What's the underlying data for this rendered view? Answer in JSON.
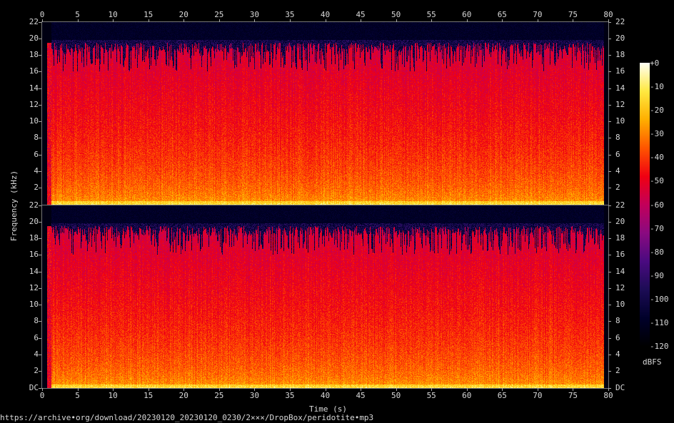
{
  "chart_data": {
    "type": "heatmap",
    "subtype": "spectrogram",
    "channels": 2,
    "xlabel": "Time (s)",
    "ylabel": "Frequency (kHz)",
    "xlim": [
      0,
      80
    ],
    "ylim": [
      0,
      22
    ],
    "x_ticks": [
      "0",
      "5",
      "10",
      "15",
      "20",
      "25",
      "30",
      "35",
      "40",
      "45",
      "50",
      "55",
      "60",
      "65",
      "70",
      "75",
      "80"
    ],
    "y_ticks": [
      "DC",
      "2",
      "4",
      "6",
      "8",
      "10",
      "12",
      "14",
      "16",
      "18",
      "20",
      "22"
    ],
    "y_ticks_top_panel_bottom_label": "22",
    "colorbar": {
      "label": "dBFS",
      "range": [
        -120,
        0
      ],
      "ticks": [
        "+0",
        "-10",
        "-20",
        "-30",
        "-40",
        "-50",
        "-60",
        "-70",
        "-80",
        "-90",
        "-100",
        "-110",
        "-120"
      ],
      "colors": [
        "#000000",
        "#00002a",
        "#1c0c55",
        "#4a0a80",
        "#8a0a80",
        "#c2005a",
        "#f00012",
        "#ff5500",
        "#ffae00",
        "#ffe840",
        "#fffff2"
      ]
    },
    "content_summary": {
      "signal_start_s": 1.3,
      "signal_end_s": 79.3,
      "lowpass_cutoff_khz": [
        16,
        19.5
      ],
      "low_freq_level_dbfs": -25,
      "mid_freq_level_dbfs": -50,
      "above_cutoff_level_dbfs": -100
    }
  },
  "footer": {
    "source": "https://archive•org/download/20230120_20230120_0230/2×××/DropBox/peridotite•mp3"
  }
}
